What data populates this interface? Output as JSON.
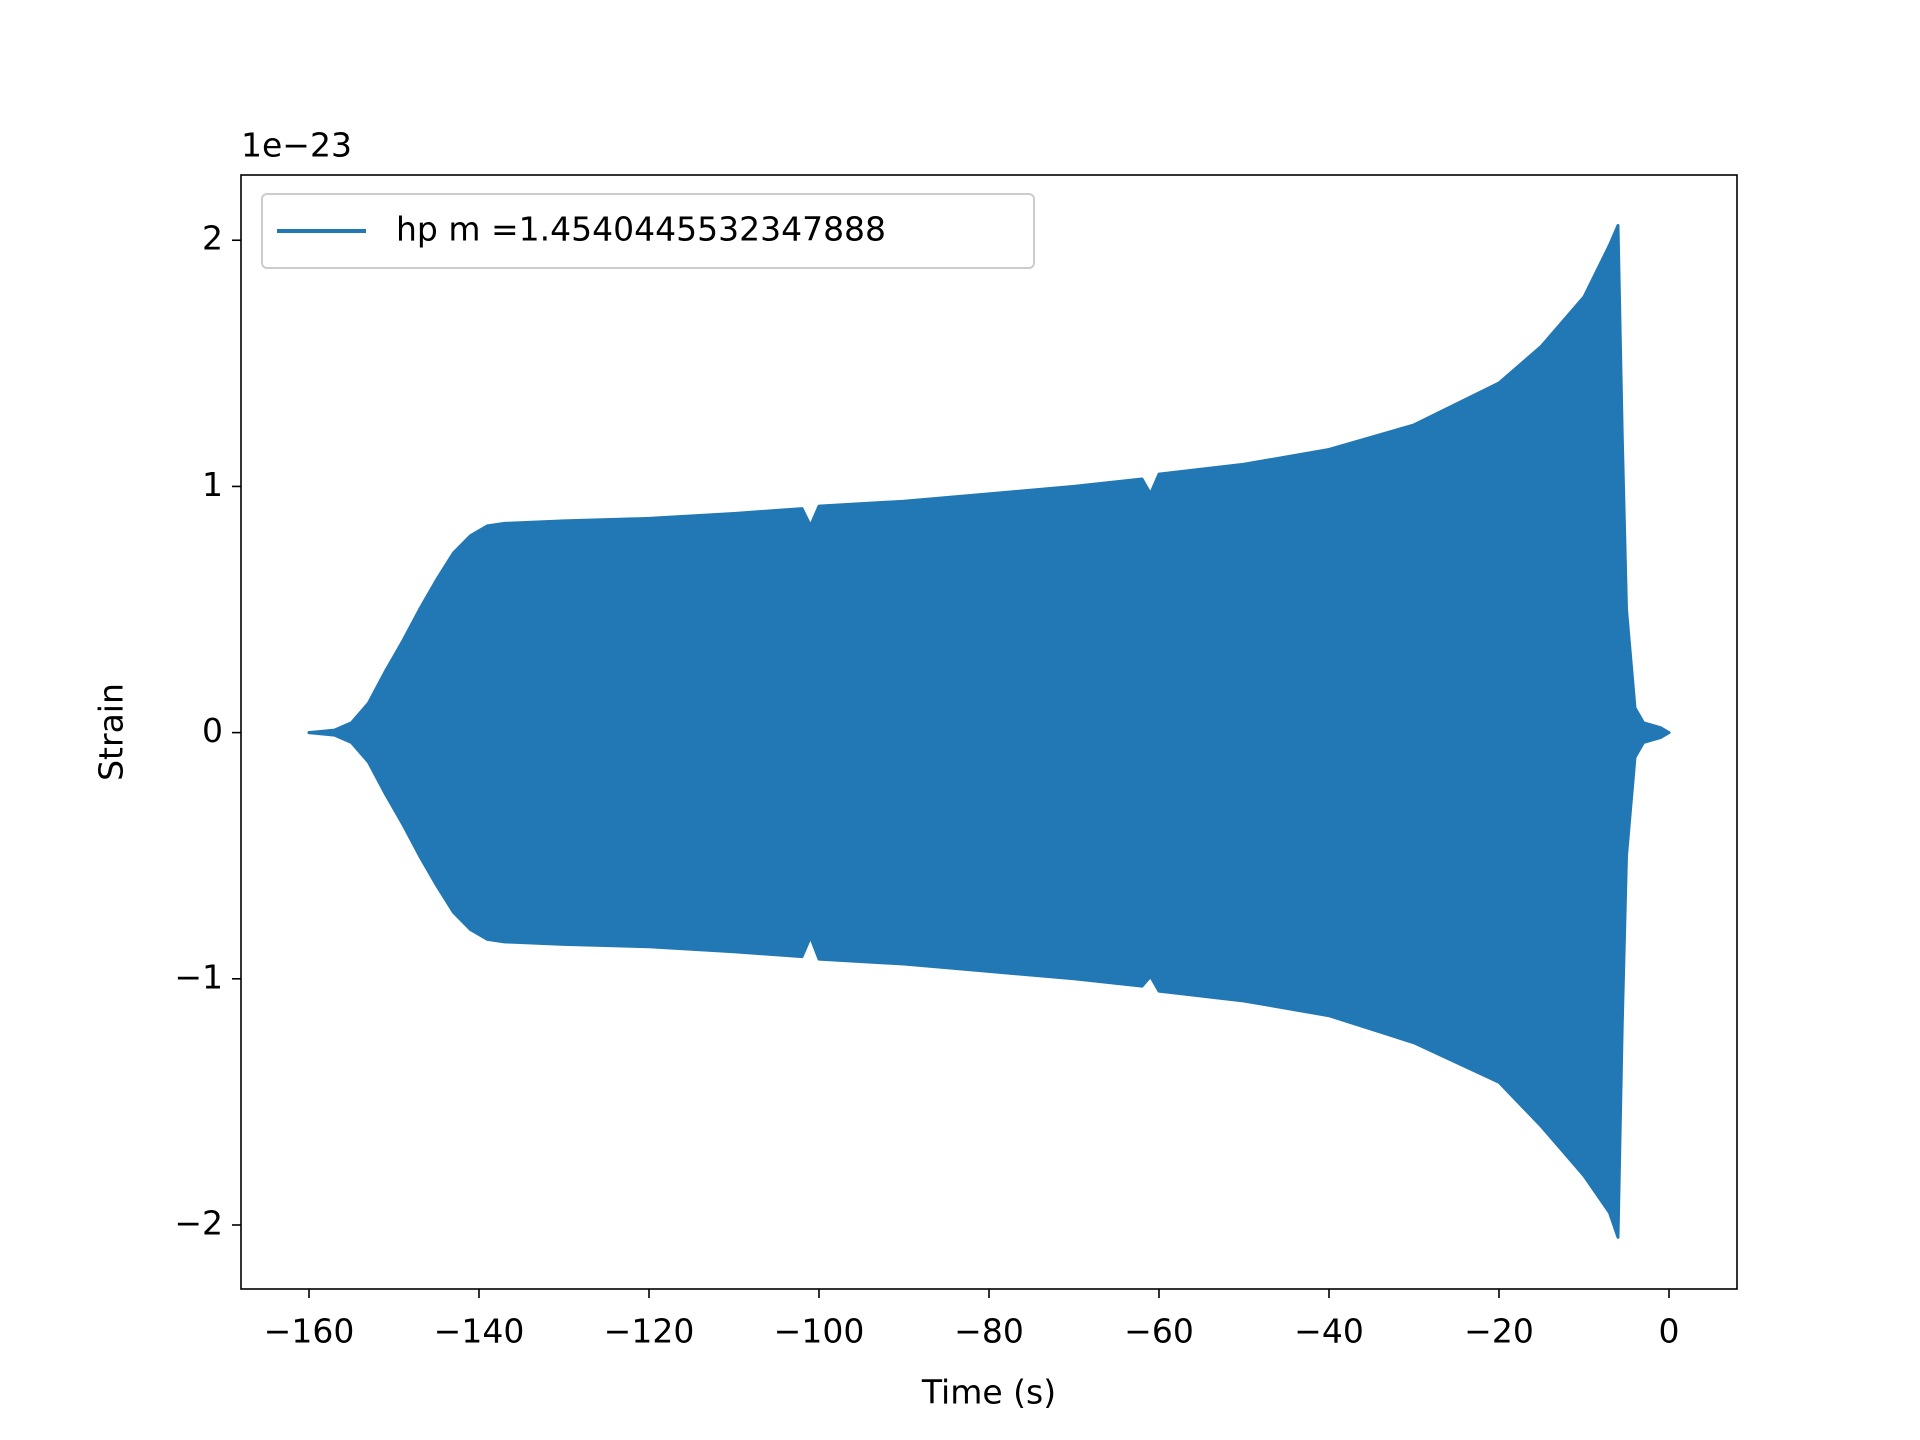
{
  "chart_data": {
    "type": "area",
    "x_label": "Time (s)",
    "y_label": "Strain",
    "y_offset_label": "1e−23",
    "x": [
      -160,
      -157,
      -155,
      -153,
      -151,
      -149,
      -147,
      -145,
      -143,
      -141,
      -139,
      -137,
      -130,
      -120,
      -110,
      -102,
      -101,
      -100,
      -90,
      -80,
      -70,
      -62,
      -61,
      -60,
      -50,
      -40,
      -30,
      -20,
      -15,
      -10,
      -7,
      -6,
      -5.5,
      -5,
      -4,
      -3,
      -1,
      0
    ],
    "series": [
      {
        "name": "hp m =1.4540445532347888",
        "color": "#2178b4",
        "upper": [
          0,
          0.01,
          0.04,
          0.12,
          0.25,
          0.37,
          0.5,
          0.62,
          0.73,
          0.8,
          0.84,
          0.85,
          0.86,
          0.87,
          0.89,
          0.91,
          0.84,
          0.92,
          0.94,
          0.97,
          1.0,
          1.03,
          0.97,
          1.05,
          1.09,
          1.15,
          1.25,
          1.42,
          1.57,
          1.77,
          1.98,
          2.06,
          1.2,
          0.5,
          0.1,
          0.04,
          0.02,
          0
        ],
        "lower": [
          0,
          -0.01,
          -0.04,
          -0.12,
          -0.25,
          -0.37,
          -0.5,
          -0.62,
          -0.73,
          -0.8,
          -0.84,
          -0.85,
          -0.86,
          -0.87,
          -0.89,
          -0.91,
          -0.83,
          -0.92,
          -0.94,
          -0.97,
          -1.0,
          -1.03,
          -0.99,
          -1.05,
          -1.09,
          -1.15,
          -1.26,
          -1.42,
          -1.6,
          -1.8,
          -1.95,
          -2.05,
          -1.18,
          -0.5,
          -0.1,
          -0.04,
          -0.02,
          0
        ]
      }
    ],
    "xlim": [
      -168,
      8
    ],
    "ylim": [
      -2.26,
      2.265
    ],
    "xticks": [
      {
        "value": -160,
        "label": "−160"
      },
      {
        "value": -140,
        "label": "−140"
      },
      {
        "value": -120,
        "label": "−120"
      },
      {
        "value": -100,
        "label": "−100"
      },
      {
        "value": -80,
        "label": "−80"
      },
      {
        "value": -60,
        "label": "−60"
      },
      {
        "value": -40,
        "label": "−40"
      },
      {
        "value": -20,
        "label": "−20"
      },
      0
    ],
    "yticks": [
      {
        "value": -2,
        "label": "−2"
      },
      {
        "value": -1,
        "label": "−1"
      },
      0,
      1,
      2
    ],
    "legend": "upper-left",
    "grid": false
  }
}
